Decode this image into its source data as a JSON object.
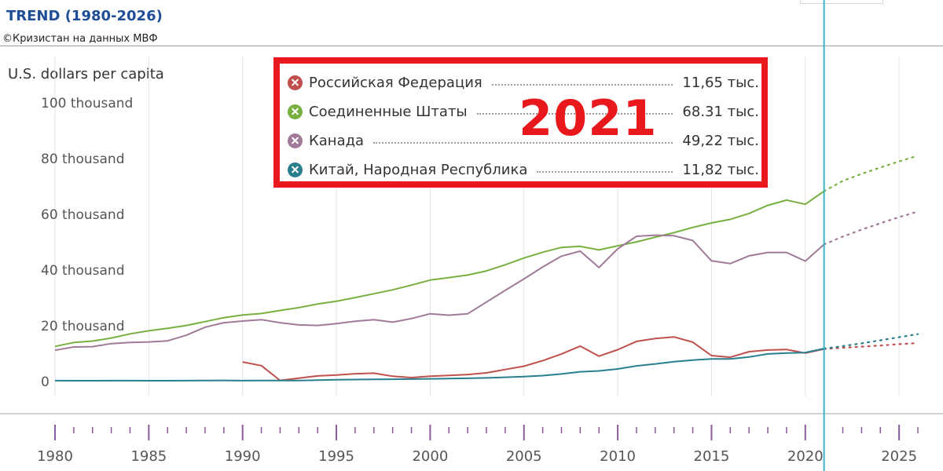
{
  "header": {
    "title": "TREND (1980-2026)",
    "copyright": "©Кризистан на данных МВФ"
  },
  "unit_label": "U.S. dollars per capita",
  "highlight_year": "2021",
  "legend": [
    {
      "name": "Российская Федерация",
      "value": "11,65 тыс.",
      "color": "#c0504d"
    },
    {
      "name": "Соединенные Штаты",
      "value": "68.31 тыс.",
      "color": "#77b041"
    },
    {
      "name": "Канада",
      "value": "49,22 тыс.",
      "color": "#a07a98"
    },
    {
      "name": "Китай, Народная Республика",
      "value": "11,82 тыс.",
      "color": "#2a7f8f"
    }
  ],
  "chart_data": {
    "type": "line",
    "xlim": [
      1980,
      2026
    ],
    "ylim": [
      0,
      100000
    ],
    "y_ticks": [
      {
        "value": 0,
        "label": "0"
      },
      {
        "value": 20000,
        "label": "20 thousand"
      },
      {
        "value": 40000,
        "label": "40 thousand"
      },
      {
        "value": 60000,
        "label": "60 thousand"
      },
      {
        "value": 80000,
        "label": "80 thousand"
      },
      {
        "value": 100000,
        "label": "100 thousand"
      }
    ],
    "x_ticks": [
      {
        "value": 1980,
        "label": "1980"
      },
      {
        "value": 1985,
        "label": "1985"
      },
      {
        "value": 1990,
        "label": "1990"
      },
      {
        "value": 1995,
        "label": "1995"
      },
      {
        "value": 2000,
        "label": "2000"
      },
      {
        "value": 2005,
        "label": "2005"
      },
      {
        "value": 2010,
        "label": "2010"
      },
      {
        "value": 2015,
        "label": "2015"
      },
      {
        "value": 2020,
        "label": "2020"
      },
      {
        "value": 2025,
        "label": "2025"
      }
    ],
    "marker_year": 2021,
    "marker_color": "#3bb3c3",
    "series": [
      {
        "name": "Российская Федерация",
        "color": "#c0504d",
        "x": [
          1990,
          1991,
          1992,
          1993,
          1994,
          1995,
          1996,
          1997,
          1998,
          1999,
          2000,
          2001,
          2002,
          2003,
          2004,
          2005,
          2006,
          2007,
          2008,
          2009,
          2010,
          2011,
          2012,
          2013,
          2014,
          2015,
          2016,
          2017,
          2018,
          2019,
          2020,
          2021
        ],
        "values": [
          7000,
          5700,
          400,
          1200,
          2000,
          2300,
          2800,
          3000,
          1900,
          1400,
          1900,
          2200,
          2500,
          3100,
          4300,
          5500,
          7500,
          9900,
          12700,
          9100,
          11400,
          14400,
          15400,
          16000,
          14100,
          9300,
          8700,
          10700,
          11300,
          11500,
          10200,
          11650
        ],
        "forecast_x": [
          2021,
          2022,
          2023,
          2024,
          2025,
          2026
        ],
        "forecast_values": [
          11650,
          12100,
          12500,
          12900,
          13400,
          13800
        ]
      },
      {
        "name": "Соединенные Штаты",
        "color": "#77b041",
        "x": [
          1980,
          1981,
          1982,
          1983,
          1984,
          1985,
          1986,
          1987,
          1988,
          1989,
          1990,
          1991,
          1992,
          1993,
          1994,
          1995,
          1996,
          1997,
          1998,
          1999,
          2000,
          2001,
          2002,
          2003,
          2004,
          2005,
          2006,
          2007,
          2008,
          2009,
          2010,
          2011,
          2012,
          2013,
          2014,
          2015,
          2016,
          2017,
          2018,
          2019,
          2020,
          2021
        ],
        "values": [
          12600,
          14000,
          14500,
          15600,
          17100,
          18200,
          19100,
          20100,
          21500,
          22900,
          23900,
          24400,
          25500,
          26500,
          27800,
          28800,
          30100,
          31500,
          32900,
          34600,
          36400,
          37300,
          38200,
          39700,
          41900,
          44300,
          46400,
          48100,
          48500,
          47200,
          48700,
          50100,
          51800,
          53400,
          55300,
          56900,
          58200,
          60300,
          63200,
          65100,
          63600,
          68310
        ],
        "forecast_x": [
          2021,
          2022,
          2023,
          2024,
          2025,
          2026
        ],
        "forecast_values": [
          68310,
          72000,
          74500,
          76800,
          79000,
          81000
        ]
      },
      {
        "name": "Канада",
        "color": "#a07a98",
        "x": [
          1980,
          1981,
          1982,
          1983,
          1984,
          1985,
          1986,
          1987,
          1988,
          1989,
          1990,
          1991,
          1992,
          1993,
          1994,
          1995,
          1996,
          1997,
          1998,
          1999,
          2000,
          2001,
          2002,
          2003,
          2004,
          2005,
          2006,
          2007,
          2008,
          2009,
          2010,
          2011,
          2012,
          2013,
          2014,
          2015,
          2016,
          2017,
          2018,
          2019,
          2020,
          2021
        ],
        "values": [
          11200,
          12400,
          12500,
          13600,
          14000,
          14200,
          14600,
          16600,
          19500,
          21100,
          21700,
          22200,
          21100,
          20300,
          20100,
          20800,
          21600,
          22200,
          21300,
          22600,
          24300,
          23800,
          24300,
          28500,
          32700,
          36800,
          41100,
          45000,
          46800,
          40900,
          47600,
          52100,
          52500,
          52300,
          50600,
          43300,
          42300,
          45100,
          46300,
          46300,
          43200,
          49220
        ],
        "forecast_x": [
          2021,
          2022,
          2023,
          2024,
          2025,
          2026
        ],
        "forecast_values": [
          49220,
          52000,
          54500,
          56800,
          59000,
          61000
        ]
      },
      {
        "name": "Китай, Народная Республика",
        "color": "#2a7f8f",
        "x": [
          1980,
          1981,
          1982,
          1983,
          1984,
          1985,
          1986,
          1987,
          1988,
          1989,
          1990,
          1991,
          1992,
          1993,
          1994,
          1995,
          1996,
          1997,
          1998,
          1999,
          2000,
          2001,
          2002,
          2003,
          2004,
          2005,
          2006,
          2007,
          2008,
          2009,
          2010,
          2011,
          2012,
          2013,
          2014,
          2015,
          2016,
          2017,
          2018,
          2019,
          2020,
          2021
        ],
        "values": [
          300,
          290,
          280,
          300,
          310,
          290,
          280,
          300,
          370,
          400,
          320,
          330,
          370,
          380,
          470,
          610,
          710,
          780,
          830,
          870,
          960,
          1050,
          1150,
          1290,
          1510,
          1750,
          2100,
          2700,
          3500,
          3800,
          4500,
          5600,
          6300,
          7100,
          7700,
          8100,
          8100,
          8800,
          9900,
          10200,
          10400,
          11820
        ],
        "forecast_x": [
          2021,
          2022,
          2023,
          2024,
          2025,
          2026
        ],
        "forecast_values": [
          11820,
          12700,
          13700,
          14800,
          15900,
          17000
        ]
      }
    ]
  }
}
